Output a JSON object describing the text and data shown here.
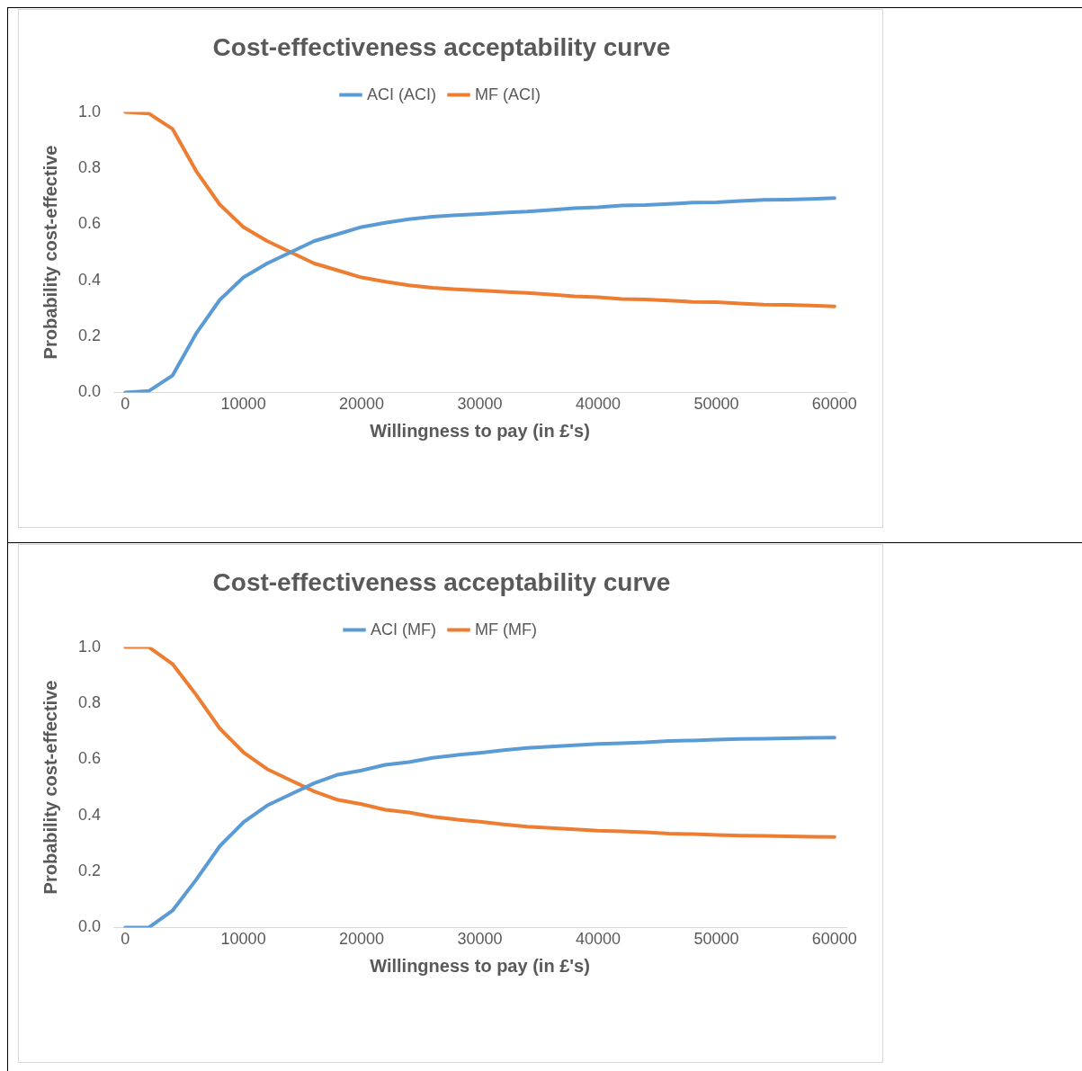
{
  "chart_data": [
    {
      "type": "line",
      "title": "Cost-effectiveness acceptability curve",
      "xlabel": "Willingness to pay (in £'s)",
      "ylabel": "Probability cost-effective",
      "legend": "top",
      "grid": false,
      "marker": "none",
      "line_style": "solid",
      "x": [
        0,
        2000,
        4000,
        6000,
        8000,
        10000,
        12000,
        14000,
        16000,
        18000,
        20000,
        22000,
        24000,
        26000,
        28000,
        30000,
        32000,
        34000,
        36000,
        38000,
        40000,
        42000,
        44000,
        46000,
        48000,
        50000,
        52000,
        54000,
        56000,
        58000,
        60000
      ],
      "xlim": [
        -1000,
        61000
      ],
      "xticks": [
        0,
        10000,
        20000,
        30000,
        40000,
        50000,
        60000
      ],
      "ylim": [
        0,
        1
      ],
      "yticks": [
        {
          "value": 0,
          "label": "0.0"
        },
        {
          "value": 0.2,
          "label": "0.2"
        },
        {
          "value": 0.4,
          "label": "0.4"
        },
        {
          "value": 0.6,
          "label": "0.6"
        },
        {
          "value": 0.8,
          "label": "0.8"
        },
        {
          "value": 1,
          "label": "1.0"
        }
      ],
      "series": [
        {
          "name": "ACI (ACI)",
          "color": "#5b9bd5",
          "values": [
            0,
            0.005,
            0.06,
            0.21,
            0.33,
            0.41,
            0.46,
            0.5,
            0.54,
            0.565,
            0.59,
            0.605,
            0.618,
            0.627,
            0.632,
            0.636,
            0.641,
            0.645,
            0.651,
            0.657,
            0.66,
            0.667,
            0.668,
            0.672,
            0.677,
            0.678,
            0.683,
            0.687,
            0.688,
            0.69,
            0.693
          ]
        },
        {
          "name": "MF (ACI)",
          "color": "#ed7d31",
          "values": [
            1,
            0.995,
            0.94,
            0.79,
            0.67,
            0.59,
            0.54,
            0.5,
            0.46,
            0.435,
            0.41,
            0.395,
            0.382,
            0.373,
            0.368,
            0.364,
            0.359,
            0.355,
            0.349,
            0.343,
            0.34,
            0.333,
            0.332,
            0.328,
            0.323,
            0.322,
            0.317,
            0.313,
            0.312,
            0.31,
            0.307
          ]
        }
      ]
    },
    {
      "type": "line",
      "title": "Cost-effectiveness acceptability curve",
      "xlabel": "Willingness to pay (in £'s)",
      "ylabel": "Probability cost-effective",
      "legend": "top",
      "grid": false,
      "marker": "none",
      "line_style": "solid",
      "x": [
        0,
        2000,
        4000,
        6000,
        8000,
        10000,
        12000,
        14000,
        16000,
        18000,
        20000,
        22000,
        24000,
        26000,
        28000,
        30000,
        32000,
        34000,
        36000,
        38000,
        40000,
        42000,
        44000,
        46000,
        48000,
        50000,
        52000,
        54000,
        56000,
        58000,
        60000
      ],
      "xlim": [
        -1000,
        61000
      ],
      "xticks": [
        0,
        10000,
        20000,
        30000,
        40000,
        50000,
        60000
      ],
      "ylim": [
        0,
        1
      ],
      "yticks": [
        {
          "value": 0,
          "label": "0.0"
        },
        {
          "value": 0.2,
          "label": "0.2"
        },
        {
          "value": 0.4,
          "label": "0.4"
        },
        {
          "value": 0.6,
          "label": "0.6"
        },
        {
          "value": 0.8,
          "label": "0.8"
        },
        {
          "value": 1,
          "label": "1.0"
        }
      ],
      "series": [
        {
          "name": "ACI (MF)",
          "color": "#5b9bd5",
          "values": [
            0,
            0,
            0.06,
            0.17,
            0.29,
            0.375,
            0.435,
            0.475,
            0.515,
            0.545,
            0.56,
            0.58,
            0.59,
            0.605,
            0.615,
            0.623,
            0.632,
            0.64,
            0.645,
            0.65,
            0.655,
            0.657,
            0.66,
            0.665,
            0.667,
            0.67,
            0.672,
            0.673,
            0.675,
            0.676,
            0.677
          ]
        },
        {
          "name": "MF (MF)",
          "color": "#ed7d31",
          "values": [
            1,
            1,
            0.94,
            0.83,
            0.71,
            0.625,
            0.565,
            0.525,
            0.485,
            0.455,
            0.44,
            0.42,
            0.41,
            0.395,
            0.385,
            0.377,
            0.368,
            0.36,
            0.355,
            0.35,
            0.345,
            0.343,
            0.34,
            0.335,
            0.333,
            0.33,
            0.328,
            0.327,
            0.325,
            0.324,
            0.323
          ]
        }
      ]
    }
  ]
}
